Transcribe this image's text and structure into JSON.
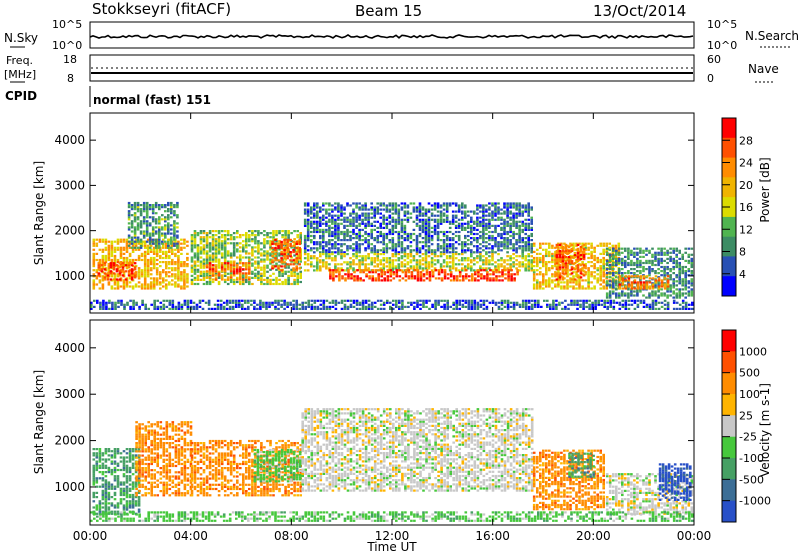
{
  "header": {
    "station": "Stokkseyri (fitACF)",
    "beam": "Beam 15",
    "date": "13/Oct/2014"
  },
  "strips": {
    "nsky_label": "N.Sky",
    "nsky_ticks": [
      "10^5",
      "10^0"
    ],
    "nsearch_label": "N.Search",
    "nsearch_ticks": [
      "10^5",
      "10^0"
    ],
    "freq_label": "Freq.",
    "freq_unit": "[MHz]",
    "freq_ticks": [
      "18",
      "8"
    ],
    "nave_label": "Nave",
    "nave_ticks": [
      "60",
      "0"
    ],
    "cpid_label": "CPID",
    "cpid_value": "normal (fast) 151"
  },
  "colors": {
    "power": [
      "#0000ff",
      "#2850b4",
      "#3c8c64",
      "#50b450",
      "#dcdc00",
      "#f0b400",
      "#ff8c00",
      "#ff5000",
      "#ff0000"
    ],
    "velocity": [
      "#2850c8",
      "#3c6e96",
      "#46a064",
      "#46c83c",
      "#c8c8c8",
      "#ffb400",
      "#ff8c00",
      "#ff5000",
      "#ff0000"
    ]
  },
  "chart_data": [
    {
      "type": "heatmap",
      "name": "power",
      "ylabel": "Slant Range [km]",
      "ylim": [
        180,
        4600
      ],
      "yticks": [
        "4000",
        "3000",
        "2000",
        "1000"
      ],
      "ytick_values": [
        4000,
        3000,
        2000,
        1000
      ],
      "xlim": [
        0,
        24
      ],
      "colorbar_label": "Power [dB]",
      "colorbar_ticks": [
        "28",
        "24",
        "20",
        "16",
        "12",
        "8",
        "4"
      ],
      "colorbar_range": [
        0,
        32
      ],
      "bands": [
        {
          "t0": 0.1,
          "t1": 3.9,
          "r0": 700,
          "r1": 1800,
          "v": 20
        },
        {
          "t0": 0.3,
          "t1": 1.8,
          "r0": 900,
          "r1": 1300,
          "v": 27
        },
        {
          "t0": 1.5,
          "t1": 3.5,
          "r0": 1600,
          "r1": 2600,
          "v": 10
        },
        {
          "t0": 4.0,
          "t1": 8.4,
          "r0": 800,
          "r1": 2000,
          "v": 14
        },
        {
          "t0": 4.6,
          "t1": 6.4,
          "r0": 900,
          "r1": 1300,
          "v": 25
        },
        {
          "t0": 7.2,
          "t1": 8.3,
          "r0": 1100,
          "r1": 1800,
          "v": 26
        },
        {
          "t0": 8.5,
          "t1": 17.6,
          "r0": 1500,
          "r1": 2600,
          "v": 7
        },
        {
          "t0": 8.5,
          "t1": 17.6,
          "r0": 1100,
          "r1": 1500,
          "v": 16
        },
        {
          "t0": 9.5,
          "t1": 17.0,
          "r0": 880,
          "r1": 1120,
          "v": 27
        },
        {
          "t0": 17.6,
          "t1": 21.0,
          "r0": 700,
          "r1": 1700,
          "v": 19
        },
        {
          "t0": 18.5,
          "t1": 19.6,
          "r0": 900,
          "r1": 1700,
          "v": 26
        },
        {
          "t0": 20.5,
          "t1": 23.9,
          "r0": 500,
          "r1": 1600,
          "v": 9
        },
        {
          "t0": 21.0,
          "t1": 23.0,
          "r0": 700,
          "r1": 1000,
          "v": 24
        },
        {
          "t0": 0.0,
          "t1": 24.0,
          "r0": 250,
          "r1": 450,
          "v": 6
        }
      ]
    },
    {
      "type": "heatmap",
      "name": "velocity",
      "ylabel": "Slant Range [km]",
      "ylim": [
        180,
        4600
      ],
      "yticks": [
        "4000",
        "3000",
        "2000",
        "1000"
      ],
      "ytick_values": [
        4000,
        3000,
        2000,
        1000
      ],
      "xlim": [
        0,
        24
      ],
      "xlabel": "Time UT",
      "xticks": [
        "00:00",
        "04:00",
        "08:00",
        "12:00",
        "16:00",
        "20:00",
        "00:00"
      ],
      "xtick_values": [
        0,
        4,
        8,
        12,
        16,
        20,
        24
      ],
      "colorbar_label": "Velocity [m s-1]",
      "colorbar_ticks": [
        "1000",
        "500",
        "100",
        "25",
        "-25",
        "-100",
        "-500",
        "-1000"
      ],
      "bands": [
        {
          "t0": 0.1,
          "t1": 2.0,
          "r0": 400,
          "r1": 1800,
          "c": 2
        },
        {
          "t0": 1.8,
          "t1": 4.0,
          "r0": 800,
          "r1": 2400,
          "c": 6
        },
        {
          "t0": 4.0,
          "t1": 8.4,
          "r0": 800,
          "r1": 2000,
          "c": 6
        },
        {
          "t0": 6.5,
          "t1": 8.3,
          "r0": 1100,
          "r1": 1800,
          "c": 3
        },
        {
          "t0": 8.4,
          "t1": 17.6,
          "r0": 900,
          "r1": 2700,
          "c": 4
        },
        {
          "t0": 17.6,
          "t1": 20.4,
          "r0": 500,
          "r1": 1800,
          "c": 6
        },
        {
          "t0": 19.0,
          "t1": 20.0,
          "r0": 1200,
          "r1": 1700,
          "c": 2
        },
        {
          "t0": 20.5,
          "t1": 23.9,
          "r0": 400,
          "r1": 1300,
          "c": 4
        },
        {
          "t0": 22.6,
          "t1": 23.9,
          "r0": 700,
          "r1": 1500,
          "c": 0
        },
        {
          "t0": 0.0,
          "t1": 24.0,
          "r0": 250,
          "r1": 450,
          "c": 3
        }
      ]
    }
  ]
}
